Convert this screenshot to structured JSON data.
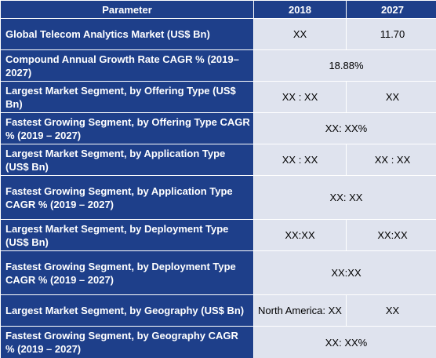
{
  "table": {
    "headers": [
      "Parameter",
      "2018",
      "2027"
    ],
    "rows": [
      {
        "parameter": "Global Telecom Analytics Market (US$ Bn)",
        "v2018": "XX",
        "v2027": "11.70"
      },
      {
        "parameter": "Compound Annual Growth Rate CAGR % (2019–2027)",
        "merged": "18.88%"
      },
      {
        "parameter": "Largest Market Segment, by Offering Type (US$ Bn)",
        "v2018": "XX : XX",
        "v2027": "XX"
      },
      {
        "parameter": "Fastest Growing Segment, by Offering Type CAGR % (2019 – 2027)",
        "merged": "XX: XX%"
      },
      {
        "parameter": "Largest Market Segment, by Application Type (US$ Bn)",
        "v2018": "XX : XX",
        "v2027": "XX : XX"
      },
      {
        "parameter": "Fastest Growing Segment, by Application Type CAGR % (2019 – 2027)",
        "merged": "XX: XX"
      },
      {
        "parameter": "Largest Market Segment, by Deployment Type (US$ Bn)",
        "v2018": "XX:XX",
        "v2027": "XX:XX"
      },
      {
        "parameter": "Fastest Growing Segment, by Deployment Type CAGR % (2019 – 2027)",
        "merged": "XX:XX"
      },
      {
        "parameter": "Largest Market Segment, by Geography (US$ Bn)",
        "v2018": "North America: XX",
        "v2027": "XX"
      },
      {
        "parameter": "Fastest Growing Segment, by Geography CAGR % (2019 – 2027)",
        "merged": "XX: XX%"
      }
    ]
  }
}
